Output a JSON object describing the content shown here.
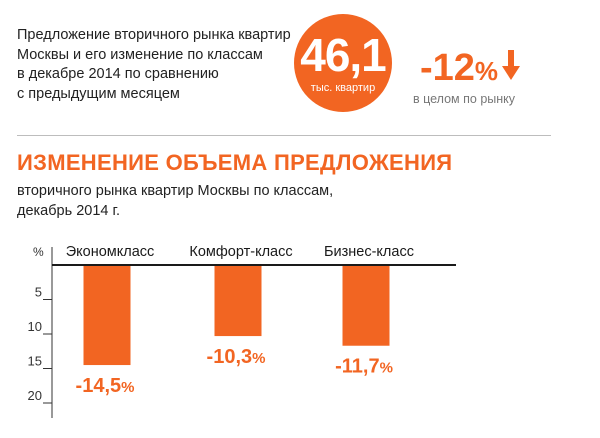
{
  "intro": {
    "lines": [
      "Предложение вторичного рынка квартир",
      "Москвы и его изменение по классам",
      "в декабре 2014 по сравнению",
      "с предыдущим месяцем"
    ]
  },
  "highlight": {
    "value": "46,1",
    "unit": "тыс. квартир",
    "color": "#f26522"
  },
  "total_change": {
    "value": "-12",
    "unit": "%",
    "note": "в целом по рынку",
    "icon": "arrow-down-icon"
  },
  "section": {
    "title": "ИЗМЕНЕНИЕ ОБЪЕМА ПРЕДЛОЖЕНИЯ",
    "subtitle_lines": [
      "вторичного рынка квартир Москвы по классам,",
      "декабрь 2014 г."
    ]
  },
  "chart_data": {
    "type": "bar",
    "ylabel": "%",
    "categories": [
      "Экономкласс",
      "Комфорт-класс",
      "Бизнес-класс"
    ],
    "values": [
      -14.5,
      -10.3,
      -11.7
    ],
    "data_labels": [
      {
        "number": "-14,5",
        "unit": "%"
      },
      {
        "number": "-10,3",
        "unit": "%"
      },
      {
        "number": "-11,7",
        "unit": "%"
      }
    ],
    "ylim": [
      0,
      -20
    ],
    "y_ticks": [
      {
        "value": -5,
        "label": "5"
      },
      {
        "value": -10,
        "label": "10"
      },
      {
        "value": -15,
        "label": "15"
      },
      {
        "value": -20,
        "label": "20"
      }
    ],
    "bar_color": "#f26522",
    "grid": false
  }
}
